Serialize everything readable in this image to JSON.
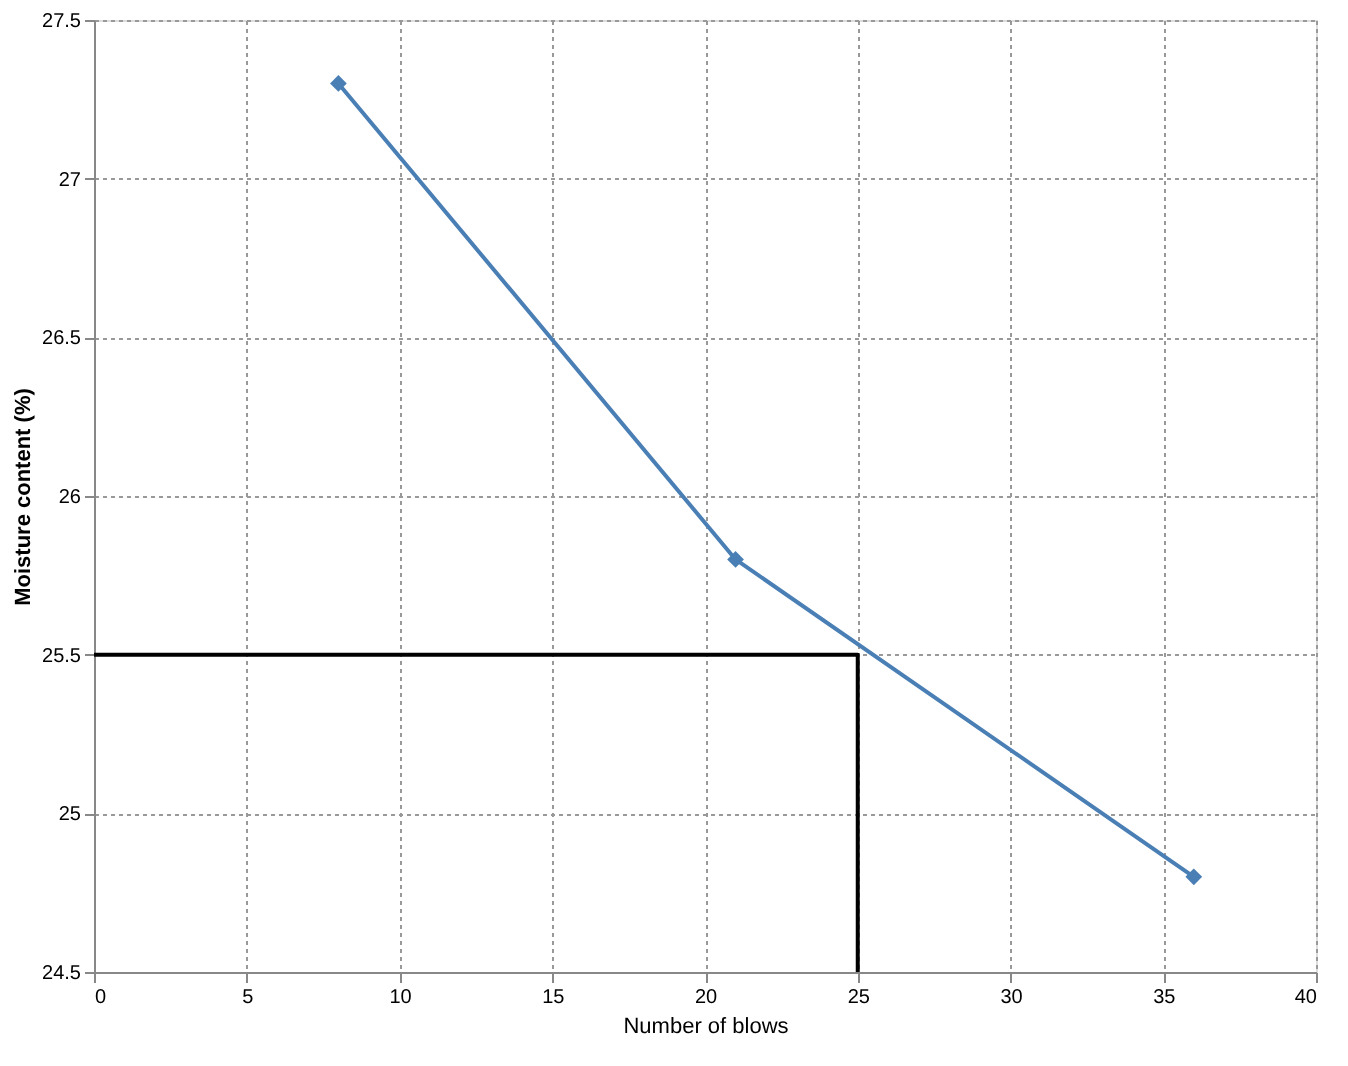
{
  "chart_data": {
    "type": "line",
    "xlabel": "Number of blows",
    "ylabel": "Moisture content (%)",
    "xlim": [
      0,
      40
    ],
    "xticks": [
      0,
      5,
      10,
      15,
      20,
      25,
      30,
      35,
      40
    ],
    "ylim": [
      24.5,
      27.5
    ],
    "yticks": [
      24.5,
      25,
      25.5,
      26,
      26.5,
      27,
      27.5
    ],
    "grid": true,
    "series": [
      {
        "color": "#4a7fb5",
        "marker": "diamond",
        "line_style": "solid",
        "x": [
          8,
          21,
          36
        ],
        "values": [
          27.3,
          25.8,
          24.8
        ]
      },
      {
        "color": "#000000",
        "marker": "none",
        "line_style": "solid",
        "x": [
          0,
          25,
          25
        ],
        "values": [
          25.5,
          25.5,
          24.5
        ]
      }
    ]
  }
}
